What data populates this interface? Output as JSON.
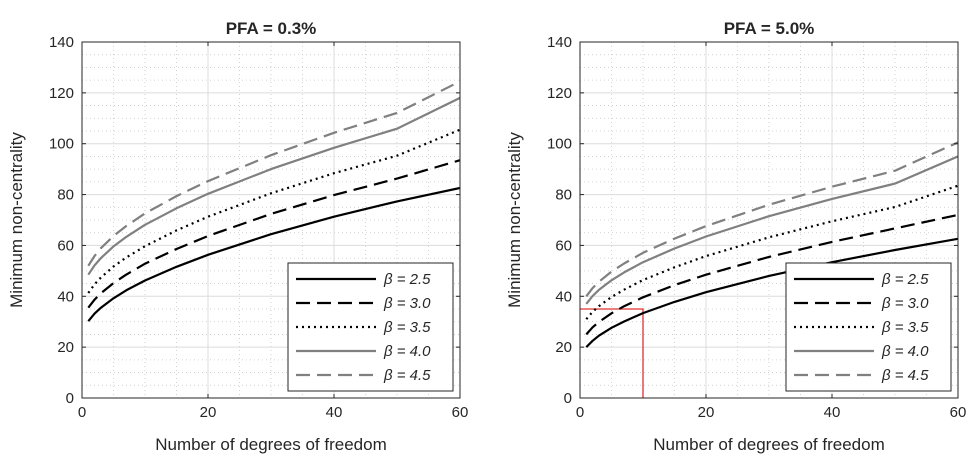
{
  "chart_data": [
    {
      "type": "line",
      "title": "PFA = 0.3%",
      "xlabel": "Number of degrees of freedom",
      "ylabel": "Minimum non-centrality",
      "xlim": [
        0,
        60
      ],
      "ylim": [
        0,
        140
      ],
      "xticks": [
        0,
        20,
        40,
        60
      ],
      "yticks": [
        0,
        20,
        40,
        60,
        80,
        100,
        120,
        140
      ],
      "grid": true,
      "minor_grid": true,
      "legend_position": "bottom-right",
      "x": [
        1,
        2,
        3,
        5,
        7,
        10,
        15,
        20,
        30,
        40,
        50,
        60
      ],
      "series": [
        {
          "name": "β = 2.5",
          "color": "#000000",
          "dash": "solid",
          "values": [
            30.2,
            33.2,
            35.5,
            39.2,
            42.3,
            46.2,
            51.6,
            56.3,
            64.4,
            71.3,
            77.3,
            82.6
          ]
        },
        {
          "name": "β = 3.0",
          "color": "#000000",
          "dash": "dashed",
          "values": [
            35.5,
            38.7,
            41.2,
            45.2,
            48.5,
            52.8,
            58.6,
            63.7,
            72.4,
            79.8,
            86.3,
            93.5
          ]
        },
        {
          "name": "β = 3.5",
          "color": "#000000",
          "dash": "dotted",
          "values": [
            41.3,
            44.7,
            47.4,
            51.7,
            55.2,
            59.7,
            65.9,
            71.3,
            80.5,
            88.4,
            95.3,
            105.5
          ]
        },
        {
          "name": "β = 4.0",
          "color": "#808080",
          "dash": "solid",
          "values": [
            48.5,
            52.2,
            55.0,
            59.6,
            63.3,
            68.1,
            74.6,
            80.3,
            90.0,
            98.4,
            105.9,
            118.0
          ]
        },
        {
          "name": "β = 4.5",
          "color": "#808080",
          "dash": "dashed",
          "values": [
            52.0,
            55.9,
            58.9,
            63.7,
            67.6,
            72.6,
            79.4,
            85.3,
            95.5,
            104.3,
            112.1,
            124.5
          ]
        }
      ]
    },
    {
      "type": "line",
      "title": "PFA = 5.0%",
      "xlabel": "Number of degrees of freedom",
      "ylabel": "Minimum non-centrality",
      "xlim": [
        0,
        60
      ],
      "ylim": [
        0,
        140
      ],
      "xticks": [
        0,
        20,
        40,
        60
      ],
      "yticks": [
        0,
        20,
        40,
        60,
        80,
        100,
        120,
        140
      ],
      "grid": true,
      "minor_grid": true,
      "legend_position": "bottom-right",
      "x": [
        1,
        2,
        3,
        5,
        7,
        10,
        15,
        20,
        30,
        40,
        50,
        60
      ],
      "series": [
        {
          "name": "β = 2.5",
          "color": "#000000",
          "dash": "solid",
          "values": [
            20.0,
            22.5,
            24.5,
            27.6,
            30.1,
            33.4,
            37.8,
            41.6,
            48.0,
            53.4,
            58.2,
            62.6
          ]
        },
        {
          "name": "β = 3.0",
          "color": "#000000",
          "dash": "dashed",
          "values": [
            25.0,
            27.8,
            29.9,
            33.3,
            36.1,
            39.6,
            44.4,
            48.5,
            55.5,
            61.4,
            66.7,
            72.0
          ]
        },
        {
          "name": "β = 3.5",
          "color": "#000000",
          "dash": "dotted",
          "values": [
            31.0,
            33.9,
            36.1,
            39.7,
            42.6,
            46.4,
            51.4,
            55.8,
            63.2,
            69.5,
            75.1,
            83.5
          ]
        },
        {
          "name": "β = 4.0",
          "color": "#808080",
          "dash": "solid",
          "values": [
            37.0,
            40.1,
            42.5,
            46.3,
            49.4,
            53.4,
            58.8,
            63.5,
            71.5,
            78.3,
            84.3,
            95.0
          ]
        },
        {
          "name": "β = 4.5",
          "color": "#808080",
          "dash": "dashed",
          "values": [
            40.0,
            43.2,
            45.7,
            49.7,
            52.9,
            57.1,
            62.7,
            67.6,
            76.0,
            83.1,
            89.4,
            100.5
          ]
        }
      ],
      "annotation": {
        "x": 10,
        "y": 35,
        "color": "#e03030"
      }
    }
  ]
}
